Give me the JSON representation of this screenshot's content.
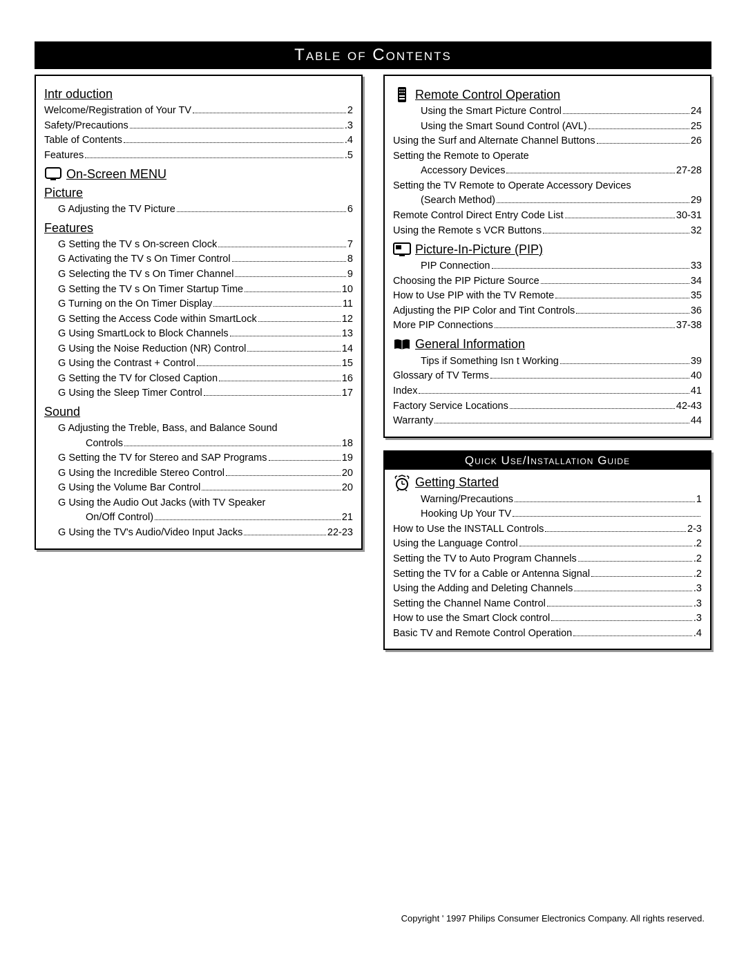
{
  "title": "Table of Contents",
  "subtitle": "Quick Use/Installation Guide",
  "copyright": "Copyright ' 1997 Philips Consumer Electronics Company. All rights reserved.",
  "left": {
    "intro": {
      "heading": "Intr oduction",
      "items": [
        {
          "label": "Welcome/Registration of Your TV",
          "page": "2"
        },
        {
          "label": "Safety/Precautions",
          "page": ".3"
        },
        {
          "label": "Table of Contents",
          "page": ".4"
        },
        {
          "label": "Features",
          "page": ".5"
        }
      ]
    },
    "onscreen": "On-Screen MENU",
    "picture": {
      "heading": "Picture",
      "items": [
        {
          "label": "Adjusting the TV Picture",
          "page": "6",
          "bullet": true
        }
      ]
    },
    "features": {
      "heading": "Features",
      "items": [
        {
          "label": "Setting the TV s On-screen Clock",
          "page": "7",
          "bullet": true
        },
        {
          "label": "Activating the TV s On Timer Control",
          "page": "8",
          "bullet": true
        },
        {
          "label": "Selecting the TV s On Timer Channel",
          "page": "9",
          "bullet": true
        },
        {
          "label": "Setting the TV s On Timer Startup Time",
          "page": "10",
          "bullet": true
        },
        {
          "label": "Turning on the On Timer Display",
          "page": "11",
          "bullet": true
        },
        {
          "label": "Setting the Access Code within SmartLock",
          "page": "12",
          "bullet": true
        },
        {
          "label": "Using SmartLock to Block Channels",
          "page": "13",
          "bullet": true
        },
        {
          "label": "Using the Noise Reduction (NR) Control",
          "page": "14",
          "bullet": true
        },
        {
          "label": "Using the Contrast + Control",
          "page": "15",
          "bullet": true
        },
        {
          "label": "Setting the TV for Closed Caption",
          "page": "16",
          "bullet": true
        },
        {
          "label": "Using the Sleep Timer Control",
          "page": "17",
          "bullet": true
        }
      ]
    },
    "sound": {
      "heading": "Sound",
      "items": [
        {
          "label": "Adjusting the Treble, Bass, and Balance Sound",
          "page": "",
          "bullet": true,
          "nodots": true
        },
        {
          "label": "Controls",
          "page": "18",
          "indent": true
        },
        {
          "label": "Setting the TV for Stereo and SAP Programs",
          "page": "19",
          "bullet": true
        },
        {
          "label": "Using the Incredible Stereo Control",
          "page": "20",
          "bullet": true
        },
        {
          "label": "Using the Volume Bar Control",
          "page": "20",
          "bullet": true
        },
        {
          "label": "Using the Audio Out Jacks (with TV Speaker",
          "page": "",
          "bullet": true,
          "nodots": true
        },
        {
          "label": "On/Off Control)",
          "page": "21",
          "indent": true
        },
        {
          "label": "Using the TV's Audio/Video Input Jacks",
          "page": "22-23",
          "bullet": true
        }
      ]
    }
  },
  "right1": {
    "remote": {
      "heading": "Remote Control Operation",
      "items": [
        {
          "label": "Using the Smart Picture Control",
          "page": "24",
          "indent": true
        },
        {
          "label": "Using the Smart Sound Control (AVL)",
          "page": "25",
          "indent": true
        },
        {
          "label": "Using the Surf and Alternate Channel Buttons",
          "page": "26"
        },
        {
          "label": "Setting the Remote to Operate",
          "page": "",
          "nodots": true
        },
        {
          "label": "Accessory Devices",
          "page": "27-28",
          "indent": true
        },
        {
          "label": "Setting the TV Remote to Operate Accessory Devices",
          "page": "",
          "nodots": true
        },
        {
          "label": "(Search Method)",
          "page": "29",
          "indent": true
        },
        {
          "label": "Remote Control Direct Entry Code List",
          "page": "30-31"
        },
        {
          "label": "Using the Remote s VCR Buttons",
          "page": "32"
        }
      ]
    },
    "pip": {
      "heading": "Picture-In-Picture (PIP)",
      "items": [
        {
          "label": "PIP Connection",
          "page": "33",
          "indent": true
        },
        {
          "label": "Choosing the PIP Picture Source",
          "page": "34"
        },
        {
          "label": "How to Use PIP with the TV Remote",
          "page": "35"
        },
        {
          "label": "Adjusting the PIP Color and Tint Controls",
          "page": "36"
        },
        {
          "label": "More PIP Connections",
          "page": "37-38"
        }
      ]
    },
    "general": {
      "heading": "General Information",
      "items": [
        {
          "label": "Tips if Something Isn t Working",
          "page": "39",
          "indent": true
        },
        {
          "label": "Glossary of TV Terms",
          "page": "40"
        },
        {
          "label": "Index",
          "page": "41"
        },
        {
          "label": "Factory Service Locations",
          "page": "42-43"
        },
        {
          "label": "Warranty",
          "page": "44"
        }
      ]
    }
  },
  "right2": {
    "getting": {
      "heading": "Getting Started",
      "items": [
        {
          "label": "Warning/Precautions",
          "page": "1",
          "indent": true
        },
        {
          "label": "Hooking Up Your TV",
          "page": "",
          "indent": true
        },
        {
          "label": "How to Use the  INSTALL  Controls",
          "page": "2-3"
        },
        {
          "label": "Using the Language Control",
          "page": ".2"
        },
        {
          "label": "Setting the TV to Auto Program Channels",
          "page": ".2"
        },
        {
          "label": "Setting the TV for a Cable or Antenna Signal",
          "page": ".2"
        },
        {
          "label": "Using the Adding and Deleting Channels",
          "page": ".3"
        },
        {
          "label": "Setting the Channel Name Control",
          "page": ".3"
        },
        {
          "label": "How to use the Smart Clock control",
          "page": ".3"
        },
        {
          "label": "Basic TV and Remote Control Operation",
          "page": ".4"
        }
      ]
    }
  }
}
